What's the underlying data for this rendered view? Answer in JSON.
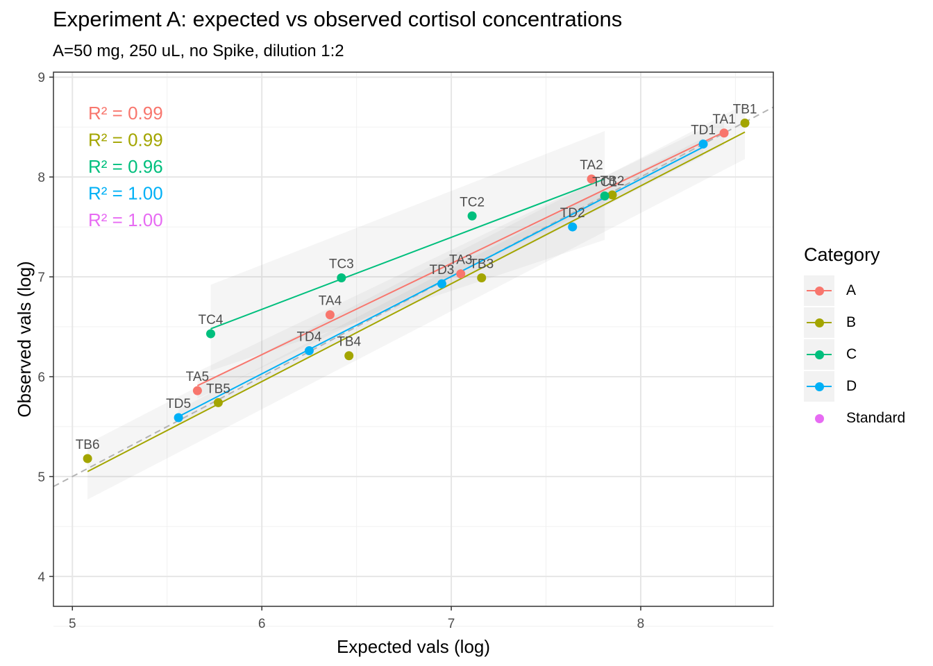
{
  "title": "Experiment A: expected vs observed cortisol concentrations",
  "subtitle": "A=50 mg, 250 uL, no Spike, dilution 1:2",
  "chart_data": {
    "type": "scatter",
    "xlabel": "Expected vals (log)",
    "ylabel": "Observed vals (log)",
    "xlim": [
      4.9,
      8.7
    ],
    "ylim": [
      3.7,
      9.05
    ],
    "x_ticks": [
      5,
      6,
      7,
      8
    ],
    "y_ticks": [
      4,
      5,
      6,
      7,
      8,
      9
    ],
    "x_tick_labels": [
      "5",
      "6",
      "7",
      "8"
    ],
    "y_tick_labels": [
      "4",
      "5",
      "6",
      "7",
      "8",
      "9"
    ],
    "grid": true,
    "reference_line": "y = x (dashed)",
    "legend_title": "Category",
    "legend_position": "right",
    "series": [
      {
        "name": "A",
        "color": "#F8766D",
        "points": [
          {
            "label": "TA1",
            "x": 8.44,
            "y": 8.44
          },
          {
            "label": "TA2",
            "x": 7.74,
            "y": 7.98
          },
          {
            "label": "TA3",
            "x": 7.05,
            "y": 7.03
          },
          {
            "label": "TA4",
            "x": 6.36,
            "y": 6.62
          },
          {
            "label": "TA5",
            "x": 5.66,
            "y": 5.86
          }
        ],
        "fit": {
          "x": [
            5.66,
            8.44
          ],
          "y": [
            5.91,
            8.45
          ]
        },
        "band": {
          "x": [
            5.66,
            8.44
          ],
          "lower": [
            5.78,
            8.32
          ],
          "upper": [
            6.05,
            8.58
          ]
        },
        "r2": "R² = 0.99"
      },
      {
        "name": "B",
        "color": "#A3A500",
        "points": [
          {
            "label": "TB1",
            "x": 8.55,
            "y": 8.54
          },
          {
            "label": "TB2",
            "x": 7.85,
            "y": 7.82
          },
          {
            "label": "TB3",
            "x": 7.16,
            "y": 6.99
          },
          {
            "label": "TB4",
            "x": 6.46,
            "y": 6.21
          },
          {
            "label": "TB5",
            "x": 5.77,
            "y": 5.74
          },
          {
            "label": "TB6",
            "x": 5.08,
            "y": 5.18
          }
        ],
        "fit": {
          "x": [
            5.08,
            8.55
          ],
          "y": [
            5.05,
            8.45
          ]
        },
        "band": {
          "x": [
            5.08,
            8.55
          ],
          "lower": [
            4.77,
            8.18
          ],
          "upper": [
            5.33,
            8.73
          ]
        },
        "r2": "R² = 0.99"
      },
      {
        "name": "C",
        "color": "#00BF7D",
        "points": [
          {
            "label": "TC1",
            "x": 7.81,
            "y": 7.81
          },
          {
            "label": "TC2",
            "x": 7.11,
            "y": 7.61
          },
          {
            "label": "TC3",
            "x": 6.42,
            "y": 6.99
          },
          {
            "label": "TC4",
            "x": 5.73,
            "y": 6.43
          }
        ],
        "fit": {
          "x": [
            5.73,
            7.81
          ],
          "y": [
            6.48,
            7.98
          ]
        },
        "band": {
          "x": [
            5.73,
            7.81
          ],
          "lower": [
            6.06,
            7.37
          ],
          "upper": [
            6.92,
            8.46
          ]
        },
        "r2": "R² = 0.96"
      },
      {
        "name": "D",
        "color": "#00B0F6",
        "points": [
          {
            "label": "TD1",
            "x": 8.33,
            "y": 8.33
          },
          {
            "label": "TD2",
            "x": 7.64,
            "y": 7.5
          },
          {
            "label": "TD3",
            "x": 6.95,
            "y": 6.93
          },
          {
            "label": "TD4",
            "x": 6.25,
            "y": 6.26
          },
          {
            "label": "TD5",
            "x": 5.56,
            "y": 5.59
          }
        ],
        "fit": {
          "x": [
            5.56,
            8.33
          ],
          "y": [
            5.6,
            8.3
          ]
        },
        "band": {
          "x": [
            5.56,
            8.33
          ],
          "lower": [
            5.53,
            8.21
          ],
          "upper": [
            5.67,
            8.39
          ]
        },
        "r2": "R² = 1.00"
      },
      {
        "name": "Standard",
        "color": "#E76BF3",
        "points": [],
        "r2": "R² = 1.00"
      }
    ]
  }
}
